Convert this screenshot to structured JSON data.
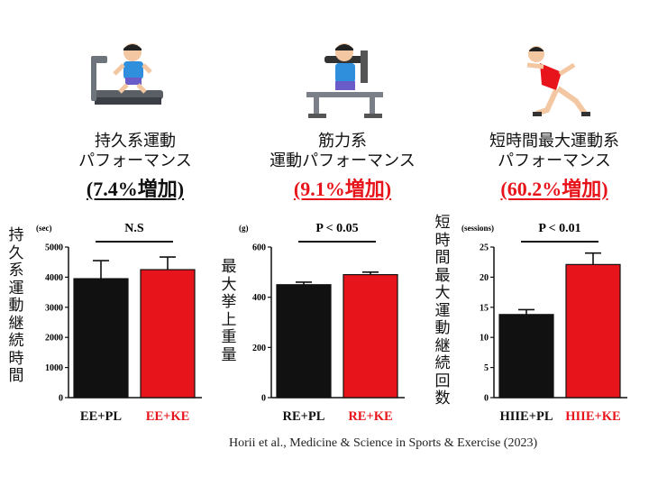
{
  "panels": [
    {
      "caption_line1": "持久系運動",
      "caption_line2": "パフォーマンス",
      "increase_text": "(7.4%増加)",
      "increase_color": "#111111",
      "vertical_ylabel": "持久系運動継続時間",
      "illustration": "treadmill-runner-icon"
    },
    {
      "caption_line1": "筋力系",
      "caption_line2": "運動パフォーマンス",
      "increase_text": "(9.1%増加)",
      "increase_color": "#e8141b",
      "vertical_ylabel": "最大挙上重量",
      "illustration": "weight-machine-icon"
    },
    {
      "caption_line1": "短時間最大運動系",
      "caption_line2": "パフォーマンス",
      "increase_text": "(60.2%増加)",
      "increase_color": "#e8141b",
      "vertical_ylabel": "短時間最大運動継続回数",
      "illustration": "sprinter-icon"
    }
  ],
  "chart_data": [
    {
      "type": "bar",
      "unit_label": "(sec)",
      "categories": [
        "EE+PL",
        "EE+KE"
      ],
      "category_colors": [
        "#111111",
        "#e8141b"
      ],
      "values": [
        3950,
        4250
      ],
      "errors": [
        600,
        420
      ],
      "ylim": [
        0,
        5000
      ],
      "yticks": [
        0,
        1000,
        2000,
        3000,
        4000,
        5000
      ],
      "significance": "N.S"
    },
    {
      "type": "bar",
      "unit_label": "(g)",
      "categories": [
        "RE+PL",
        "RE+KE"
      ],
      "category_colors": [
        "#111111",
        "#e8141b"
      ],
      "values": [
        450,
        490
      ],
      "errors": [
        10,
        10
      ],
      "ylim": [
        0,
        600
      ],
      "yticks": [
        0,
        200,
        400,
        600
      ],
      "significance": "P < 0.05"
    },
    {
      "type": "bar",
      "unit_label": "(sessions)",
      "categories": [
        "HIIE+PL",
        "HIIE+KE"
      ],
      "category_colors": [
        "#111111",
        "#e8141b"
      ],
      "values": [
        13.8,
        22.1
      ],
      "errors": [
        0.8,
        1.9
      ],
      "ylim": [
        0,
        25
      ],
      "yticks": [
        0,
        5,
        10,
        15,
        20,
        25
      ],
      "significance": "P < 0.01"
    }
  ],
  "credit": "Horii et al., Medicine & Science in Sports & Exercise (2023)"
}
